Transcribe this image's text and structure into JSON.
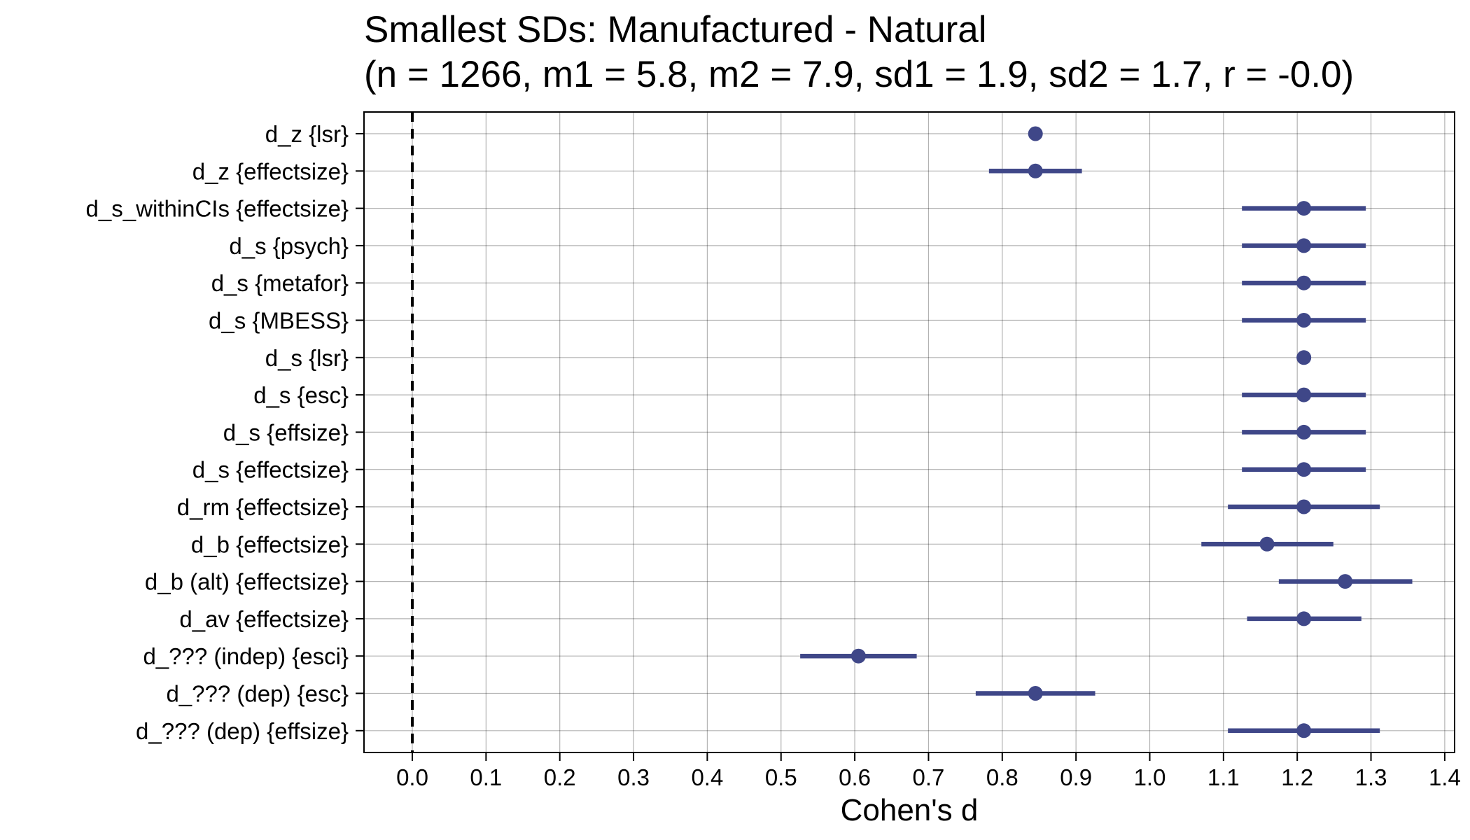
{
  "chart_data": {
    "type": "forest",
    "title": "Smallest SDs: Manufactured - Natural",
    "subtitle": "(n = 1266, m1 = 5.8, m2 = 7.9, sd1 = 1.9, sd2 = 1.7, r = -0.0)",
    "xlabel": "Cohen's d",
    "ylabel": "",
    "xlim": [
      -0.07,
      1.42
    ],
    "xticks": [
      0.0,
      0.1,
      0.2,
      0.3,
      0.4,
      0.5,
      0.6,
      0.7,
      0.8,
      0.9,
      1.0,
      1.1,
      1.2,
      1.3,
      1.4
    ],
    "xtick_labels": [
      "0.0",
      "0.1",
      "0.2",
      "0.3",
      "0.4",
      "0.5",
      "0.6",
      "0.7",
      "0.8",
      "0.9",
      "1.0",
      "1.1",
      "1.2",
      "1.3",
      "1.4"
    ],
    "reference_line": 0.0,
    "grid": true,
    "color": "#3f4788",
    "rows": [
      {
        "label": "d_z {lsr}",
        "estimate": 0.845,
        "lower": null,
        "upper": null
      },
      {
        "label": "d_z {effectsize}",
        "estimate": 0.845,
        "lower": 0.782,
        "upper": 0.908
      },
      {
        "label": "d_s_withinCIs {effectsize}",
        "estimate": 1.209,
        "lower": 1.125,
        "upper": 1.293
      },
      {
        "label": "d_s {psych}",
        "estimate": 1.209,
        "lower": 1.125,
        "upper": 1.293
      },
      {
        "label": "d_s {metafor}",
        "estimate": 1.209,
        "lower": 1.125,
        "upper": 1.293
      },
      {
        "label": "d_s {MBESS}",
        "estimate": 1.209,
        "lower": 1.125,
        "upper": 1.293
      },
      {
        "label": "d_s {lsr}",
        "estimate": 1.209,
        "lower": null,
        "upper": null
      },
      {
        "label": "d_s {esc}",
        "estimate": 1.209,
        "lower": 1.125,
        "upper": 1.293
      },
      {
        "label": "d_s {effsize}",
        "estimate": 1.209,
        "lower": 1.125,
        "upper": 1.293
      },
      {
        "label": "d_s {effectsize}",
        "estimate": 1.209,
        "lower": 1.125,
        "upper": 1.293
      },
      {
        "label": "d_rm {effectsize}",
        "estimate": 1.209,
        "lower": 1.106,
        "upper": 1.312
      },
      {
        "label": "d_b {effectsize}",
        "estimate": 1.159,
        "lower": 1.07,
        "upper": 1.249
      },
      {
        "label": "d_b (alt) {effectsize}",
        "estimate": 1.265,
        "lower": 1.175,
        "upper": 1.356
      },
      {
        "label": "d_av {effectsize}",
        "estimate": 1.209,
        "lower": 1.132,
        "upper": 1.287
      },
      {
        "label": "d_??? (indep) {esci}",
        "estimate": 0.605,
        "lower": 0.526,
        "upper": 0.684
      },
      {
        "label": "d_??? (dep) {esc}",
        "estimate": 0.845,
        "lower": 0.764,
        "upper": 0.926
      },
      {
        "label": "d_??? (dep) {effsize}",
        "estimate": 1.209,
        "lower": 1.106,
        "upper": 1.312
      }
    ]
  }
}
